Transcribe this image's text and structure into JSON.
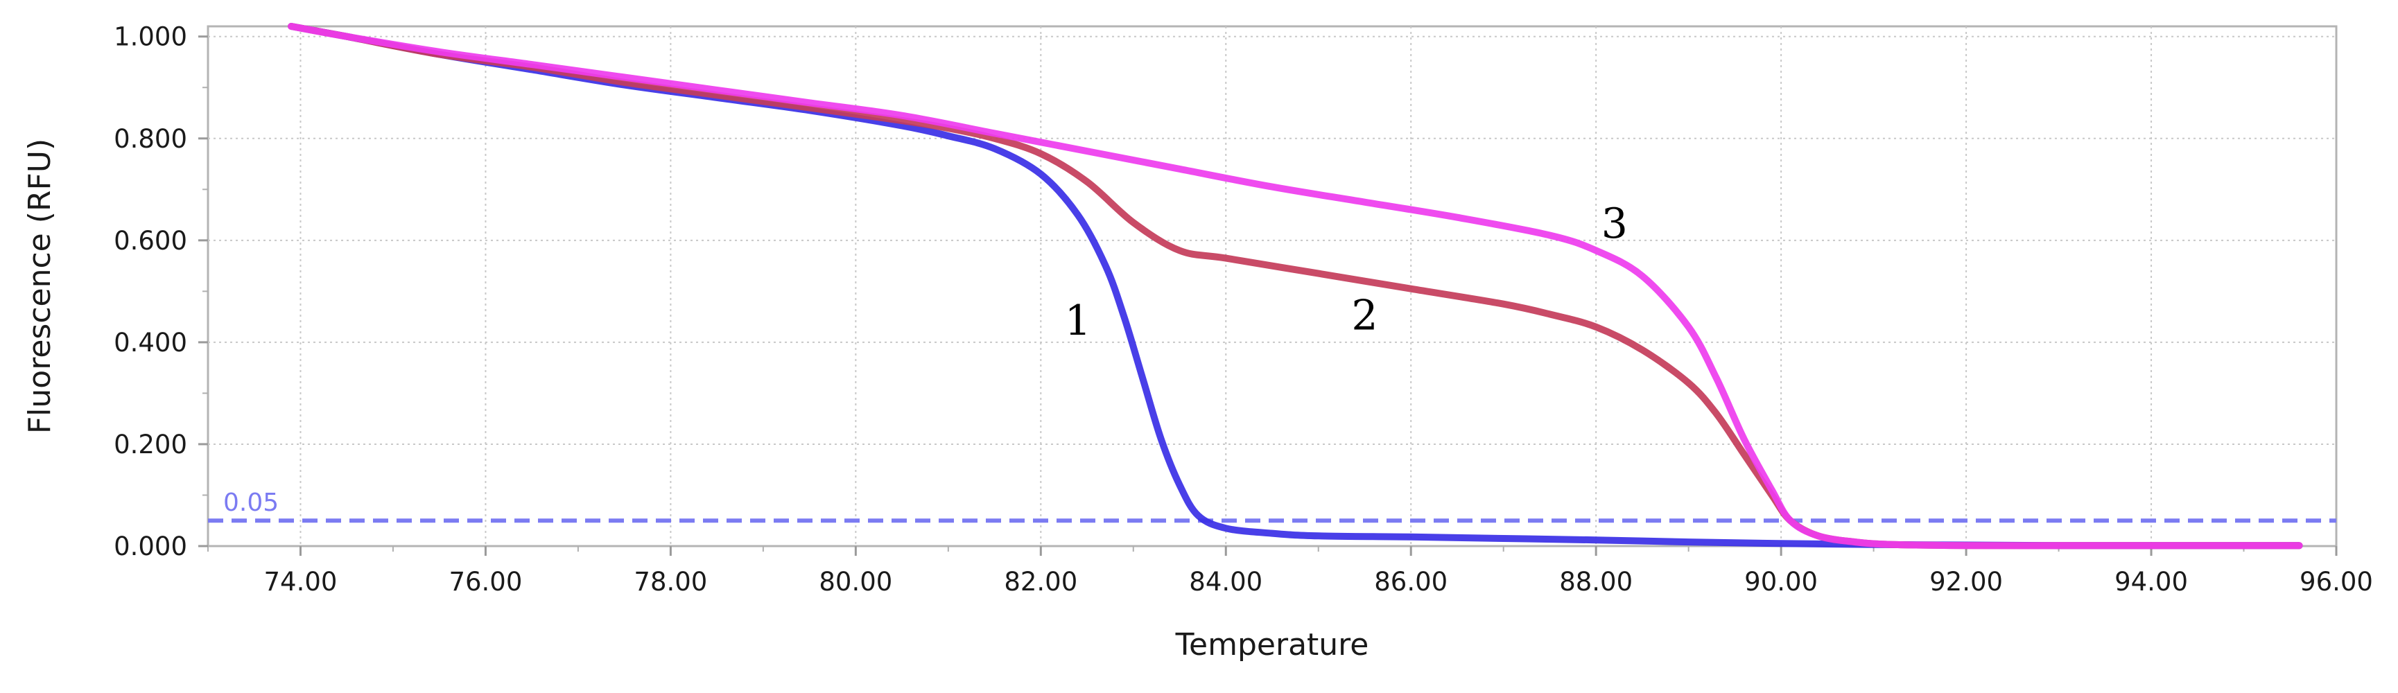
{
  "chart_data": {
    "type": "line",
    "title": "",
    "xlabel": "Temperature",
    "ylabel": "Fluorescence  (RFU)",
    "xlim": [
      73,
      96
    ],
    "ylim": [
      0,
      1.02
    ],
    "x_ticks": [
      74,
      76,
      78,
      80,
      82,
      84,
      86,
      88,
      90,
      92,
      94,
      96
    ],
    "x_tick_labels": [
      "74.00",
      "76.00",
      "78.00",
      "80.00",
      "82.00",
      "84.00",
      "86.00",
      "88.00",
      "90.00",
      "92.00",
      "94.00",
      "96.00"
    ],
    "y_ticks": [
      0,
      0.2,
      0.4,
      0.6,
      0.8,
      1.0
    ],
    "y_tick_labels": [
      "0.000",
      "0.200",
      "0.400",
      "0.600",
      "0.800",
      "1.000"
    ],
    "grid": true,
    "legend": "none",
    "threshold": {
      "value": 0.05,
      "label": "0.05",
      "color": "#7b7bf2"
    },
    "series": [
      {
        "label": "1",
        "label_at": [
          82.4,
          0.415
        ],
        "color": "#3a2fe6",
        "x": [
          73.9,
          74.5,
          75.5,
          76.5,
          77.5,
          78.5,
          79.5,
          80.5,
          81.0,
          81.5,
          82.0,
          82.4,
          82.7,
          82.9,
          83.1,
          83.3,
          83.5,
          83.7,
          84.0,
          84.5,
          85.0,
          86.0,
          87.0,
          88.0,
          89.0,
          90.0,
          91.0,
          92.0,
          93.0,
          94.0,
          95.0,
          95.6
        ],
        "y": [
          1.02,
          1.0,
          0.965,
          0.935,
          0.905,
          0.88,
          0.855,
          0.825,
          0.805,
          0.78,
          0.73,
          0.65,
          0.55,
          0.45,
          0.33,
          0.21,
          0.12,
          0.06,
          0.035,
          0.025,
          0.02,
          0.018,
          0.015,
          0.012,
          0.008,
          0.005,
          0.003,
          0.002,
          0.001,
          0.001,
          0.001,
          0.001
        ]
      },
      {
        "label": "2",
        "label_at": [
          85.5,
          0.425
        ],
        "color": "#c43c5a",
        "x": [
          73.9,
          74.5,
          75.5,
          76.5,
          77.5,
          78.5,
          79.5,
          80.5,
          81.0,
          81.5,
          82.0,
          82.5,
          83.0,
          83.5,
          84.0,
          85.0,
          86.0,
          87.0,
          87.5,
          88.0,
          88.5,
          89.0,
          89.3,
          89.6,
          89.9,
          90.1,
          90.4,
          90.8,
          91.2,
          92.0,
          93.0,
          94.0,
          95.0,
          95.6
        ],
        "y": [
          1.02,
          1.0,
          0.965,
          0.94,
          0.91,
          0.885,
          0.86,
          0.835,
          0.82,
          0.8,
          0.77,
          0.715,
          0.635,
          0.58,
          0.565,
          0.535,
          0.505,
          0.475,
          0.455,
          0.43,
          0.385,
          0.32,
          0.26,
          0.18,
          0.1,
          0.05,
          0.02,
          0.008,
          0.003,
          0.001,
          0.001,
          0.001,
          0.001,
          0.001
        ]
      },
      {
        "label": "3",
        "label_at": [
          88.2,
          0.605
        ],
        "color": "#ee3cee",
        "x": [
          73.9,
          74.5,
          75.5,
          76.5,
          77.5,
          78.5,
          79.5,
          80.5,
          81.5,
          82.5,
          83.5,
          84.5,
          85.5,
          86.5,
          87.5,
          88.0,
          88.5,
          89.0,
          89.3,
          89.6,
          89.9,
          90.1,
          90.4,
          90.8,
          91.2,
          92.0,
          93.0,
          94.0,
          95.0,
          95.6
        ],
        "y": [
          1.02,
          1.0,
          0.97,
          0.945,
          0.92,
          0.895,
          0.87,
          0.845,
          0.81,
          0.775,
          0.74,
          0.705,
          0.675,
          0.645,
          0.61,
          0.58,
          0.53,
          0.43,
          0.33,
          0.21,
          0.11,
          0.05,
          0.02,
          0.008,
          0.003,
          0.001,
          0.001,
          0.001,
          0.001,
          0.001
        ]
      }
    ]
  }
}
